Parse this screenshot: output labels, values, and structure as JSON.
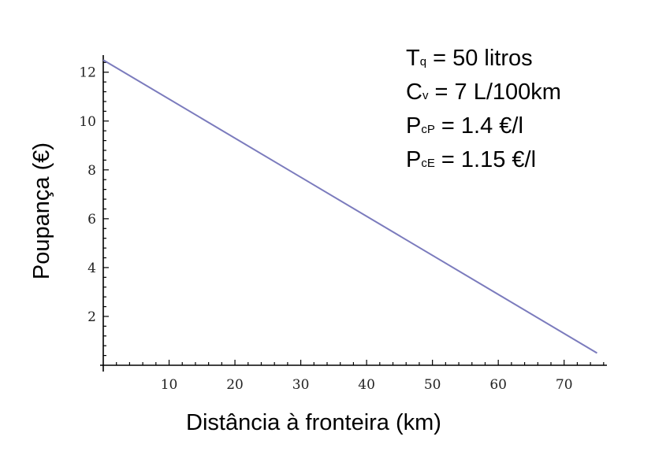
{
  "chart_data": {
    "type": "line",
    "title": "",
    "xlabel": "Distância à fronteira (km)",
    "ylabel": "Poupança (€)",
    "xlim": [
      0,
      76.5
    ],
    "ylim": [
      0,
      12.7
    ],
    "x_ticks": [
      10,
      20,
      30,
      40,
      50,
      60,
      70
    ],
    "y_ticks": [
      2,
      4,
      6,
      8,
      10,
      12
    ],
    "grid": false,
    "series": [
      {
        "color": "#7b7bbd",
        "x": [
          0,
          75
        ],
        "y": [
          12.5,
          0.5
        ]
      }
    ],
    "annotations": [
      {
        "main": "T",
        "sub": "q",
        "rest": " = 50 litros"
      },
      {
        "main": "C",
        "sub": "v",
        "rest": " = 7 L/100km"
      },
      {
        "main": "P",
        "sub": "cP",
        "rest": " = 1.4 €/l"
      },
      {
        "main": "P",
        "sub": "cE",
        "rest": " = 1.15 €/l"
      }
    ]
  }
}
